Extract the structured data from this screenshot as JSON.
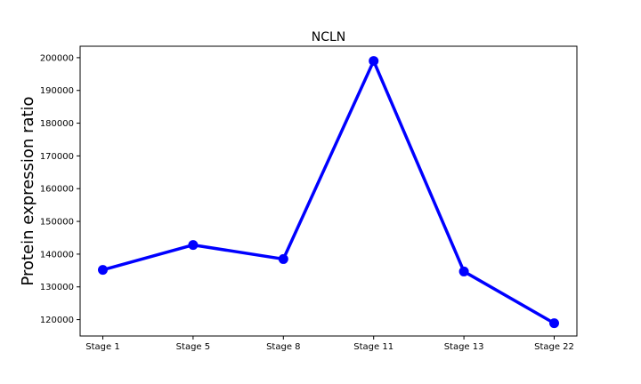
{
  "chart_data": {
    "type": "line",
    "title": "NCLN",
    "xlabel": "",
    "ylabel": "Protein expression ratio",
    "categories": [
      "Stage 1",
      "Stage 5",
      "Stage 8",
      "Stage 11",
      "Stage 13",
      "Stage 22"
    ],
    "series": [
      {
        "values": [
          135200,
          142800,
          138500,
          199000,
          134700,
          118900
        ]
      }
    ],
    "ylim": [
      115000,
      203500
    ],
    "yticks": [
      120000,
      130000,
      140000,
      150000,
      160000,
      170000,
      180000,
      190000,
      200000
    ],
    "line_color": "#0000ff",
    "grid": false,
    "legend": "none"
  }
}
